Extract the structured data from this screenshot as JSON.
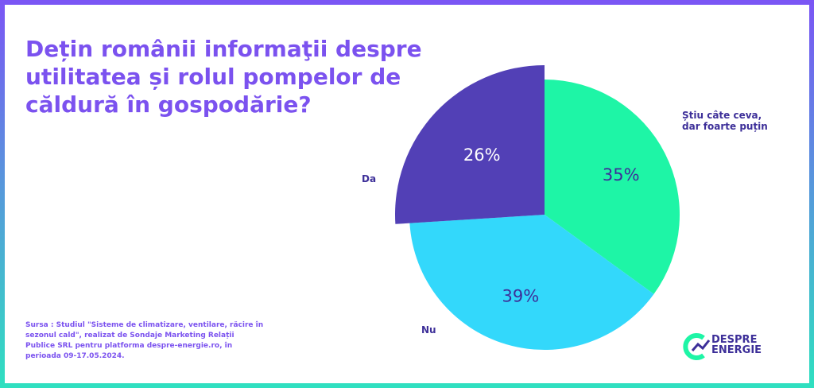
{
  "chart_data": {
    "type": "pie",
    "title": "Dețin românii informaţii despre utilitatea și rolul pompelor de căldură în gospodărie?",
    "categories": [
      "Știu câte ceva, dar foarte puțin",
      "Nu",
      "Da"
    ],
    "values": [
      35,
      39,
      26
    ],
    "value_labels": [
      "35%",
      "39%",
      "26%"
    ],
    "colors": [
      "#1ef5a6",
      "#33d8fb",
      "#5240b6"
    ],
    "source": "Sursa : Studiul \"Sisteme de climatizare, ventilare, răcire în sezonul cald\", realizat de Sondaje Marketing Relații Publice SRL pentru platforma despre-energie.ro, în perioada 09-17.05.2024."
  },
  "logo": {
    "line1": "DESPRE",
    "line2": "ENERGIE"
  }
}
